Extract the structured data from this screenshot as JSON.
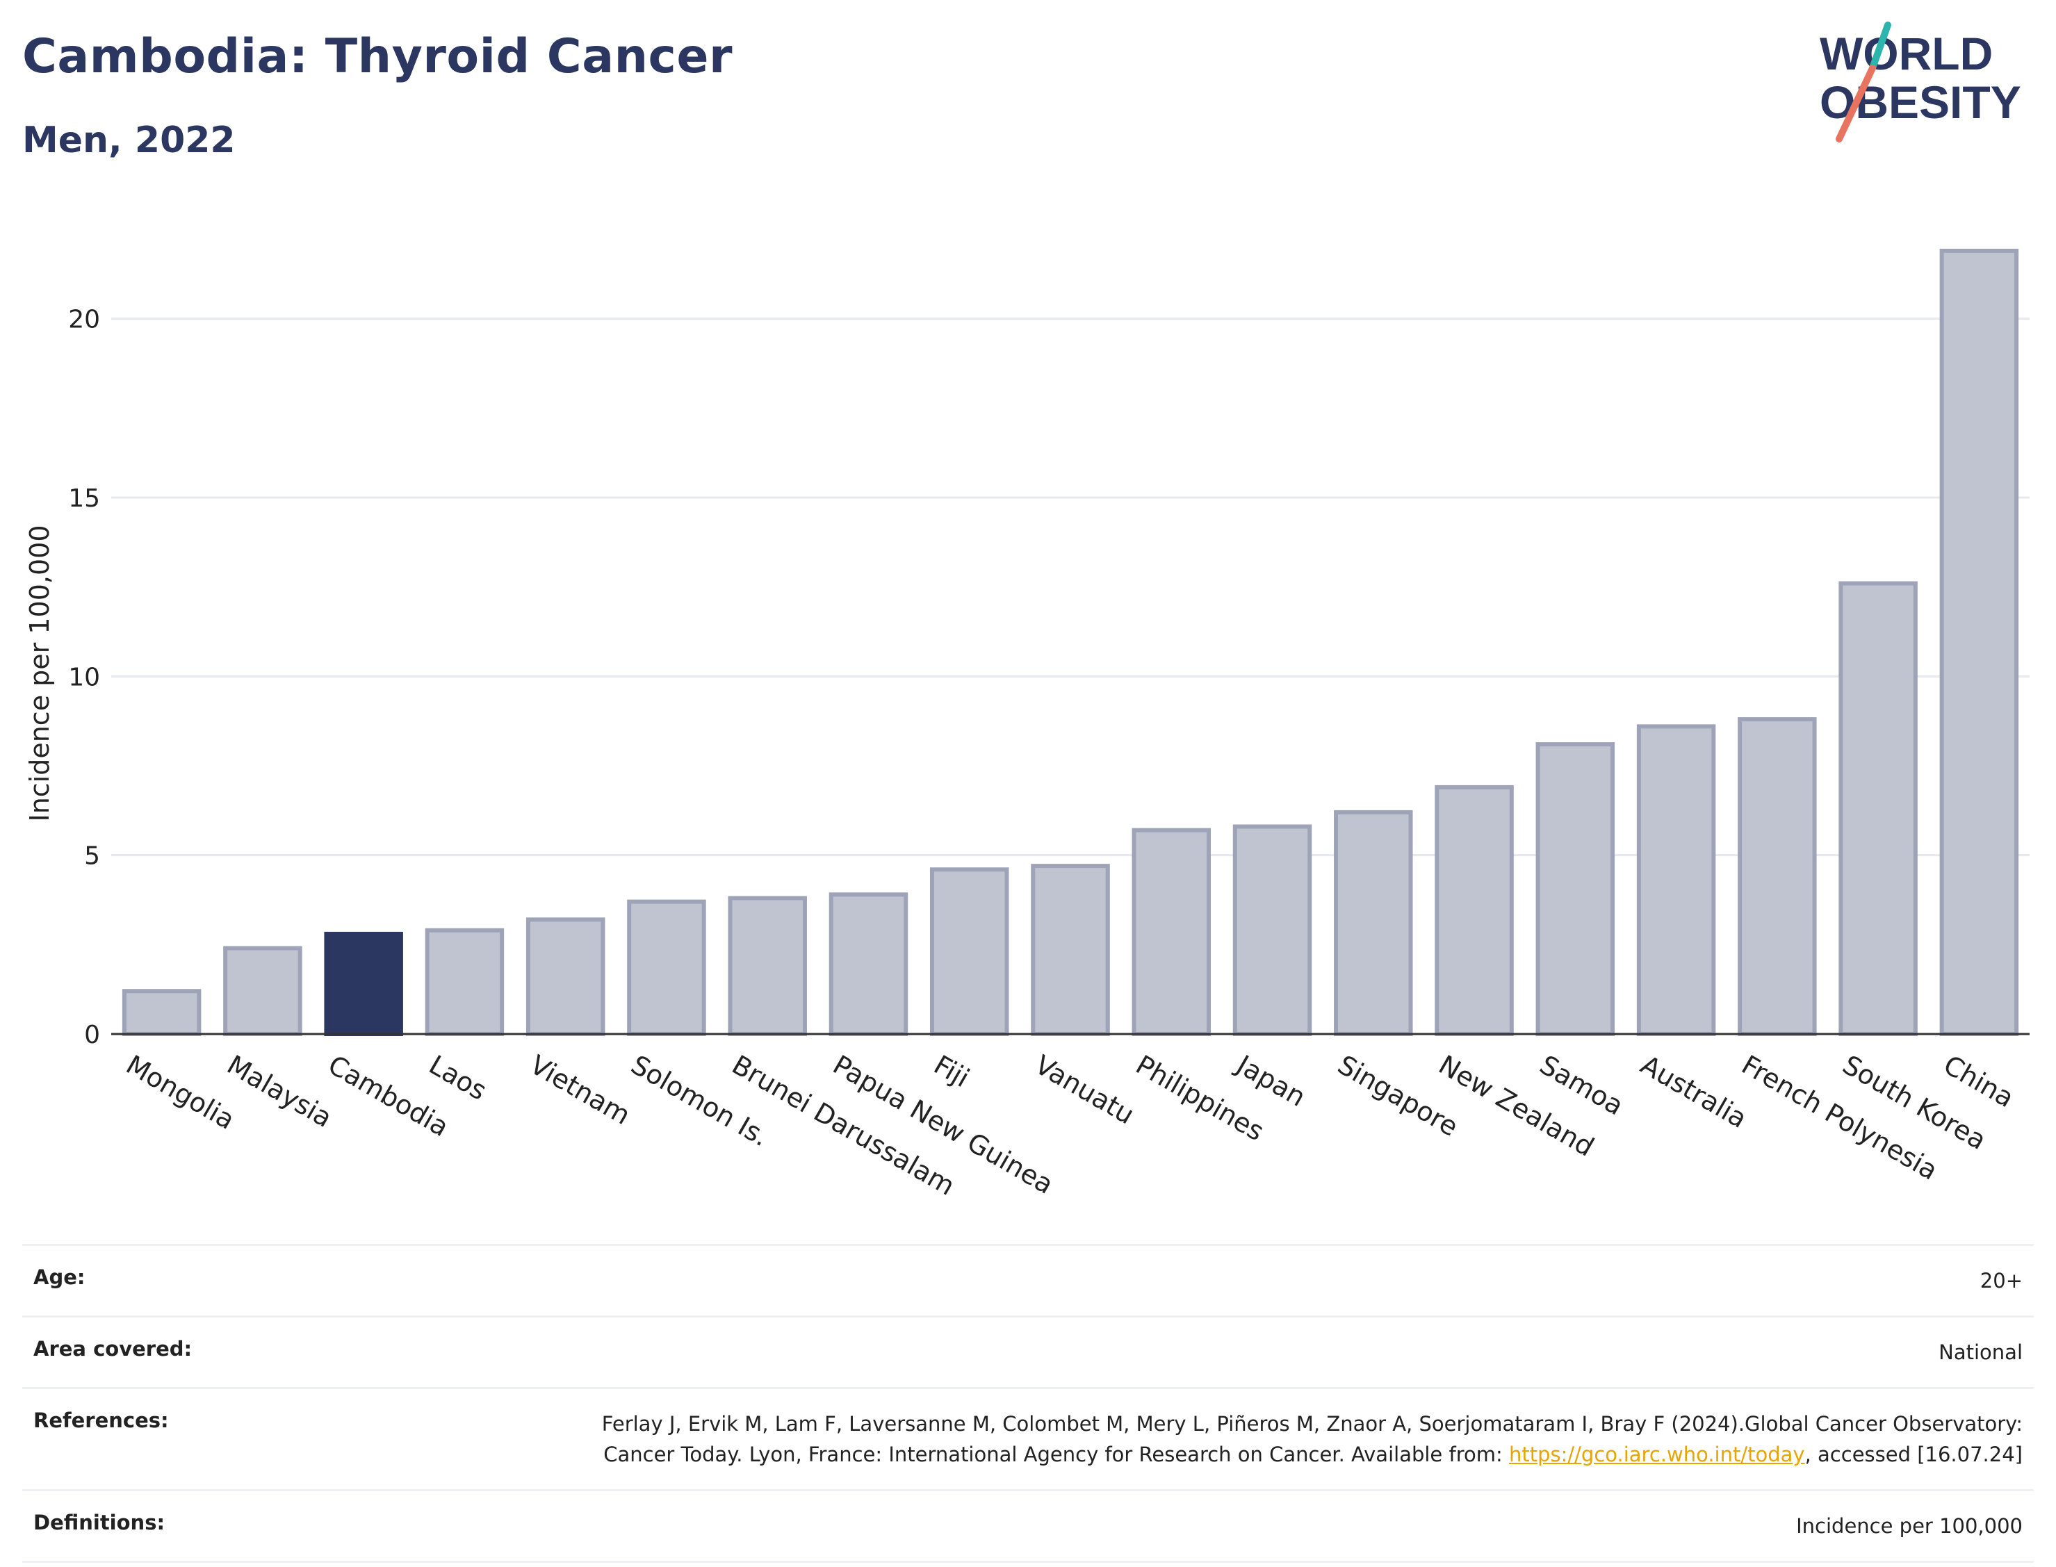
{
  "header": {
    "title": "Cambodia: Thyroid Cancer",
    "subtitle": "Men, 2022"
  },
  "logo": {
    "line1": "WORLD",
    "line2": "OBESITY",
    "colors": {
      "text": "#2b3661",
      "teal": "#2bb5ad",
      "coral": "#e8735f"
    }
  },
  "chart_data": {
    "type": "bar",
    "ylabel": "Incidence per 100,000",
    "xlabel": "",
    "ylim": [
      0,
      22.5
    ],
    "yticks": [
      0,
      5,
      10,
      15,
      20
    ],
    "grid": true,
    "highlight_category": "Cambodia",
    "colors": {
      "bar": "#c0c4d0",
      "bar_edge": "#9ea3b8",
      "highlight": "#2b3661"
    },
    "categories": [
      "Mongolia",
      "Malaysia",
      "Cambodia",
      "Laos",
      "Vietnam",
      "Solomon Is.",
      "Brunei Darussalam",
      "Papua New Guinea",
      "Fiji",
      "Vanuatu",
      "Philippines",
      "Japan",
      "Singapore",
      "New Zealand",
      "Samoa",
      "Australia",
      "French Polynesia",
      "South Korea",
      "China"
    ],
    "values": [
      1.2,
      2.4,
      2.8,
      2.9,
      3.2,
      3.7,
      3.8,
      3.9,
      4.6,
      4.7,
      5.7,
      5.8,
      6.2,
      6.9,
      8.1,
      8.6,
      8.8,
      12.6,
      21.9
    ]
  },
  "meta": {
    "age_label": "Age:",
    "age_value": "20+",
    "area_label": "Area covered:",
    "area_value": "National",
    "references_label": "References:",
    "references_text_1": "Ferlay J, Ervik M, Lam F, Laversanne M, Colombet M, Mery L, Piñeros M, Znaor A, Soerjomataram I, Bray F (2024).Global Cancer Observatory: Cancer Today. Lyon, France: International Agency for Research on Cancer. Available from: ",
    "references_link": "https://gco.iarc.who.int/today",
    "references_text_2": ", accessed [16.07.24]",
    "definitions_label": "Definitions:",
    "definitions_value": "Incidence per 100,000"
  }
}
